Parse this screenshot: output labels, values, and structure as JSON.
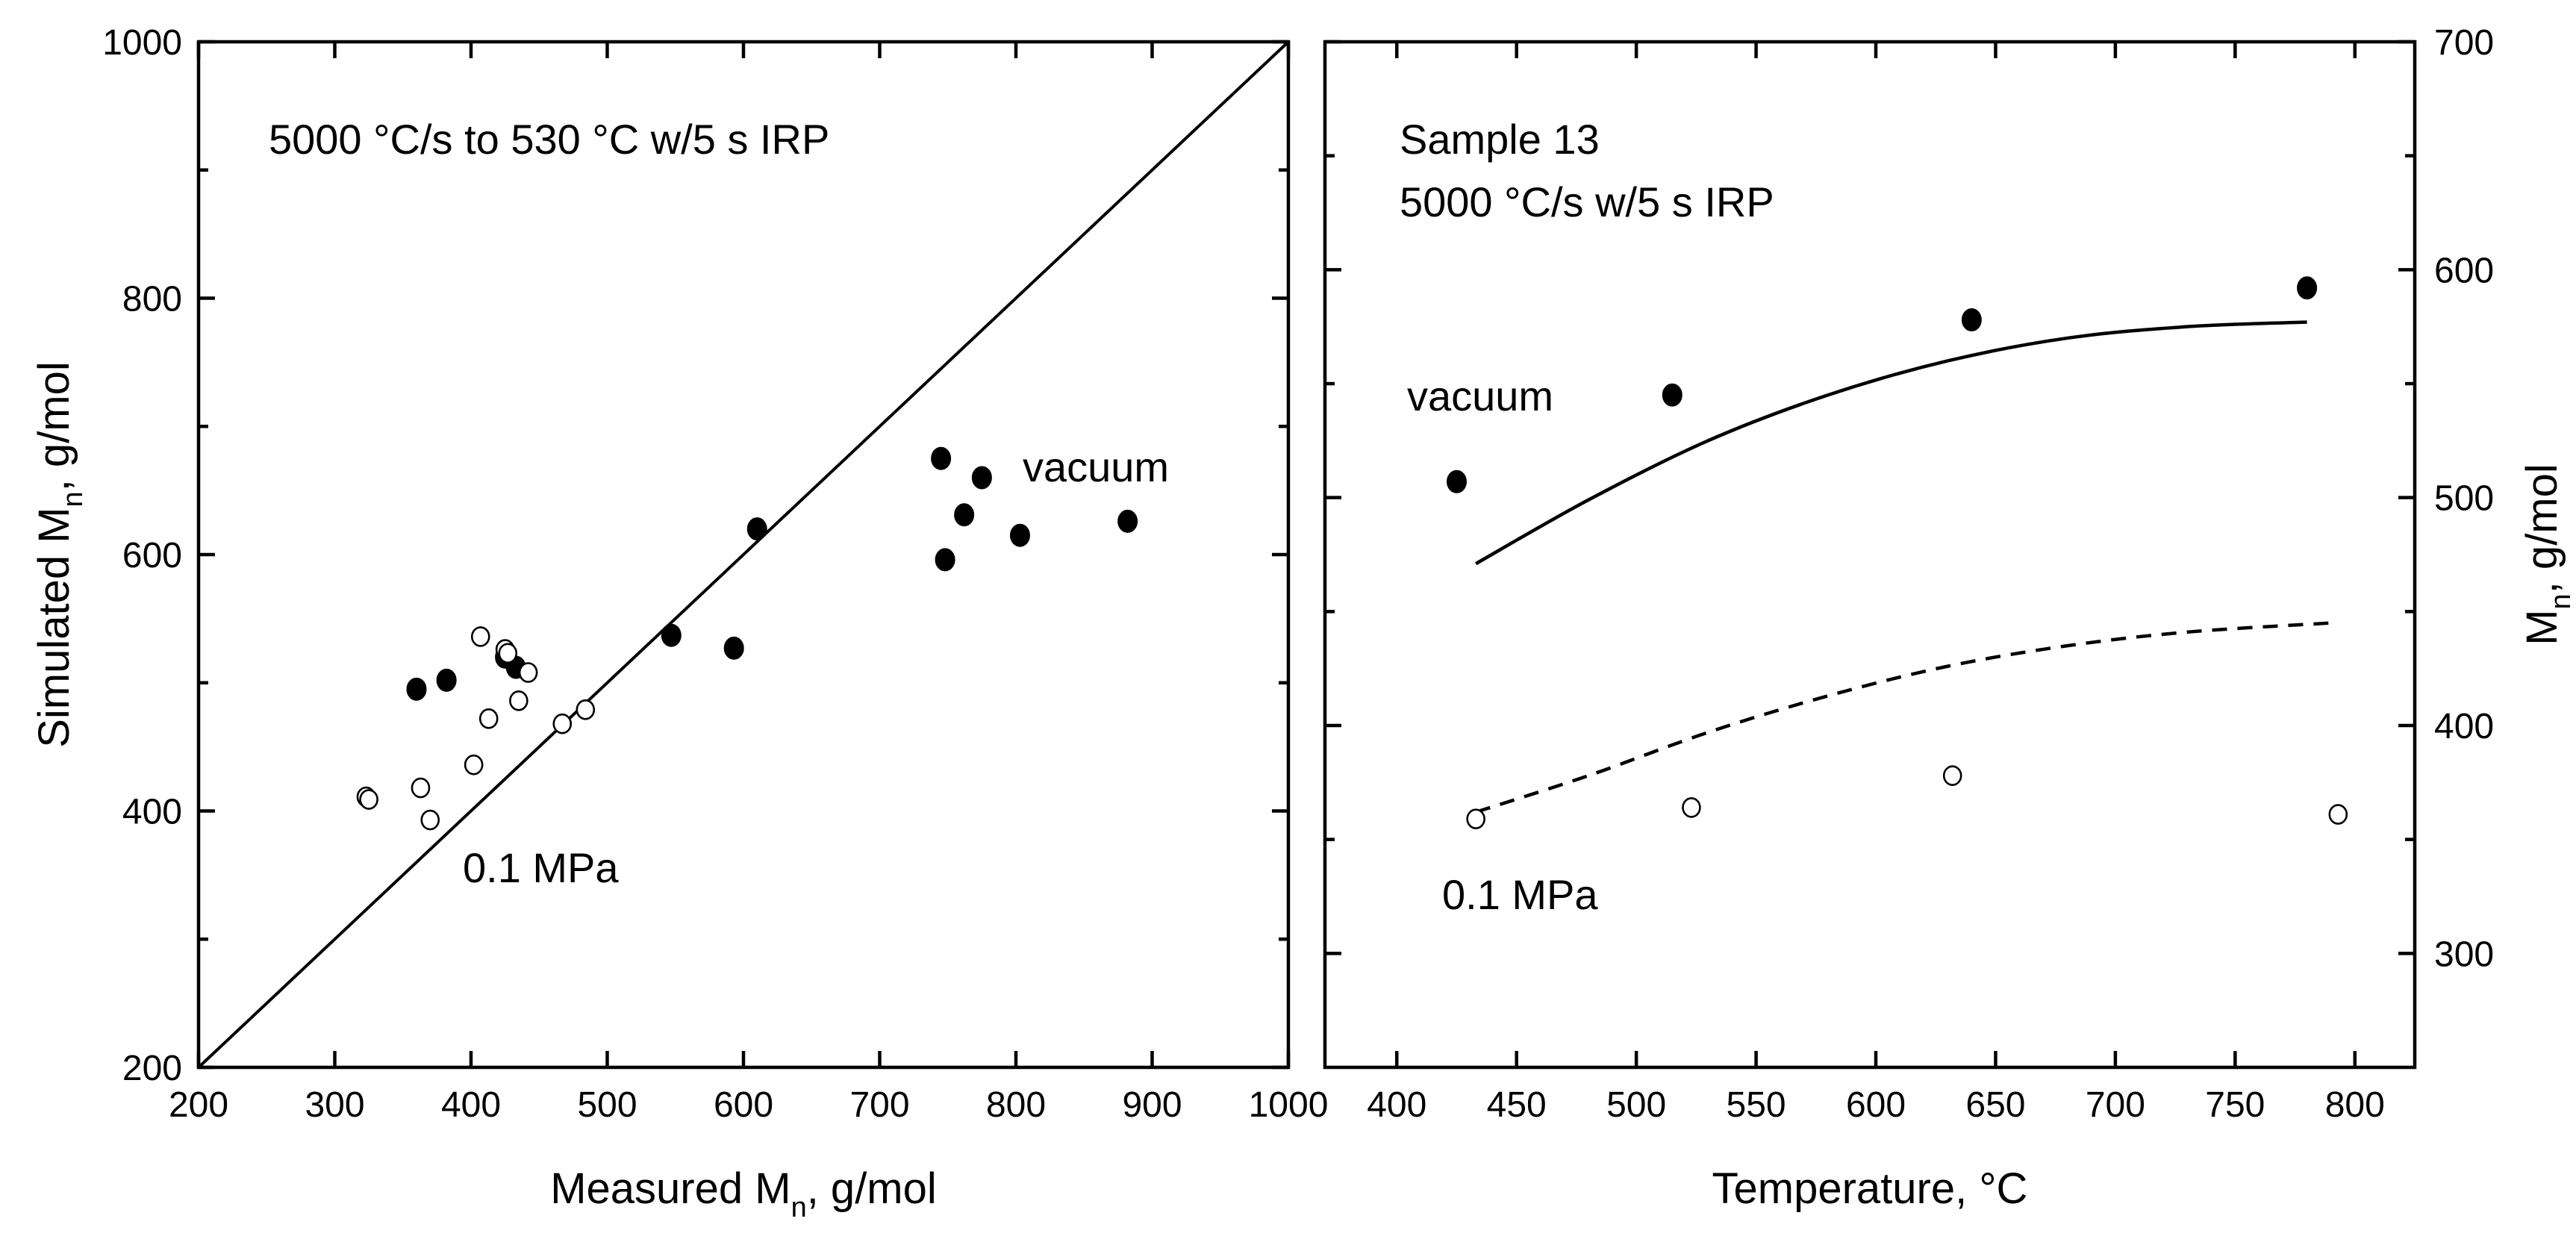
{
  "chart_data": [
    {
      "type": "scatter",
      "xlabel_main": "Measured M",
      "xlabel_sub": "n",
      "xlabel_tail": ", g/mol",
      "ylabel_main": "Simulated M",
      "ylabel_sub": "n",
      "ylabel_tail": ", g/mol",
      "xlim": [
        200,
        1000
      ],
      "ylim": [
        200,
        1000
      ],
      "x_ticks": [
        200,
        300,
        400,
        500,
        600,
        700,
        800,
        900,
        1000
      ],
      "y_ticks": [
        200,
        400,
        600,
        800,
        1000
      ],
      "annotations": {
        "condition": "5000 °C/s to 530 °C w/5 s IRP",
        "vacuum": "vacuum",
        "pressure": "0.1 MPa"
      },
      "reference_line": {
        "name": "parity",
        "points": [
          [
            200,
            200
          ],
          [
            1000,
            1000
          ]
        ]
      },
      "series": [
        {
          "name": "vacuum",
          "marker": "filled-circle",
          "points": [
            [
              360,
              495
            ],
            [
              382,
              502
            ],
            [
              425,
              520
            ],
            [
              433,
              512
            ],
            [
              547,
              537
            ],
            [
              593,
              527
            ],
            [
              610,
              620
            ],
            [
              745,
              675
            ],
            [
              748,
              596
            ],
            [
              762,
              631
            ],
            [
              775,
              660
            ],
            [
              803,
              615
            ],
            [
              882,
              626
            ]
          ]
        },
        {
          "name": "0.1 MPa",
          "marker": "open-circle",
          "points": [
            [
              323,
              411
            ],
            [
              325,
              409
            ],
            [
              363,
              418
            ],
            [
              370,
              393
            ],
            [
              402,
              436
            ],
            [
              407,
              536
            ],
            [
              413,
              472
            ],
            [
              425,
              526
            ],
            [
              427,
              523
            ],
            [
              435,
              486
            ],
            [
              442,
              508
            ],
            [
              467,
              468
            ],
            [
              484,
              479
            ]
          ]
        }
      ]
    },
    {
      "type": "scatter",
      "xlabel": "Temperature, °C",
      "ylabel_main": "M",
      "ylabel_sub": "n",
      "ylabel_tail": ", g/mol",
      "xlim": [
        370,
        825
      ],
      "ylim": [
        250,
        700
      ],
      "x_ticks": [
        400,
        450,
        500,
        550,
        600,
        650,
        700,
        750,
        800
      ],
      "y_ticks": [
        300,
        400,
        500,
        600,
        700
      ],
      "annotations": {
        "sample": "Sample 13",
        "condition": "5000 °C/s w/5 s IRP",
        "vacuum": "vacuum",
        "pressure": "0.1 MPa"
      },
      "series": [
        {
          "name": "vacuum",
          "marker": "filled-circle",
          "points": [
            [
              425,
              507
            ],
            [
              515,
              545
            ],
            [
              640,
              578
            ],
            [
              780,
              592
            ]
          ]
        },
        {
          "name": "0.1 MPa",
          "marker": "open-circle",
          "points": [
            [
              433,
              359
            ],
            [
              523,
              364
            ],
            [
              632,
              378
            ],
            [
              793,
              361
            ]
          ]
        },
        {
          "name": "vacuum model",
          "line": "solid",
          "points": [
            [
              433,
              471
            ],
            [
              480,
              499
            ],
            [
              530,
              525
            ],
            [
              580,
              545
            ],
            [
              630,
              560
            ],
            [
              680,
              570
            ],
            [
              730,
              575
            ],
            [
              780,
              577
            ]
          ]
        },
        {
          "name": "0.1 MPa model",
          "line": "dashed",
          "points": [
            [
              433,
              362
            ],
            [
              480,
              378
            ],
            [
              530,
              397
            ],
            [
              580,
              413
            ],
            [
              630,
              426
            ],
            [
              680,
              435
            ],
            [
              730,
              441
            ],
            [
              790,
              445
            ]
          ]
        }
      ]
    }
  ]
}
